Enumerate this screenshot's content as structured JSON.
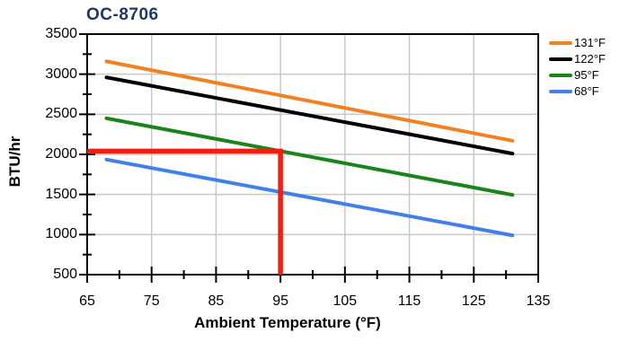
{
  "colors": {
    "title": "#1F3864",
    "axis": "#000000",
    "grid": "#C9C9C9",
    "annotation": "#F01F10",
    "background": "#FFFFFF"
  },
  "chart_data": {
    "type": "line",
    "title": "OC-8706",
    "xlabel": "Ambient Temperature (°F)",
    "ylabel": "BTU/hr",
    "xlim": [
      65,
      135
    ],
    "ylim": [
      500,
      3500
    ],
    "x_major_ticks": [
      65,
      75,
      85,
      95,
      105,
      115,
      125,
      135
    ],
    "x_minor_step": 5,
    "y_major_ticks": [
      500,
      1000,
      1500,
      2000,
      2500,
      3000,
      3500
    ],
    "y_minor_step": 250,
    "grid": "major",
    "legend_position": "top-right",
    "series": [
      {
        "name": "131°F",
        "color": "#F28124",
        "x": [
          68,
          131
        ],
        "y": [
          3160,
          2170
        ]
      },
      {
        "name": "122°F",
        "color": "#000000",
        "x": [
          68,
          131
        ],
        "y": [
          2960,
          2010
        ]
      },
      {
        "name": "95°F",
        "color": "#178517",
        "x": [
          68,
          131
        ],
        "y": [
          2450,
          1495
        ]
      },
      {
        "name": "68°F",
        "color": "#4180E8",
        "x": [
          68,
          131
        ],
        "y": [
          1935,
          990
        ]
      }
    ],
    "annotation": {
      "type": "crosshair",
      "x": 95,
      "y": 2040,
      "color": "#F01F10"
    }
  }
}
